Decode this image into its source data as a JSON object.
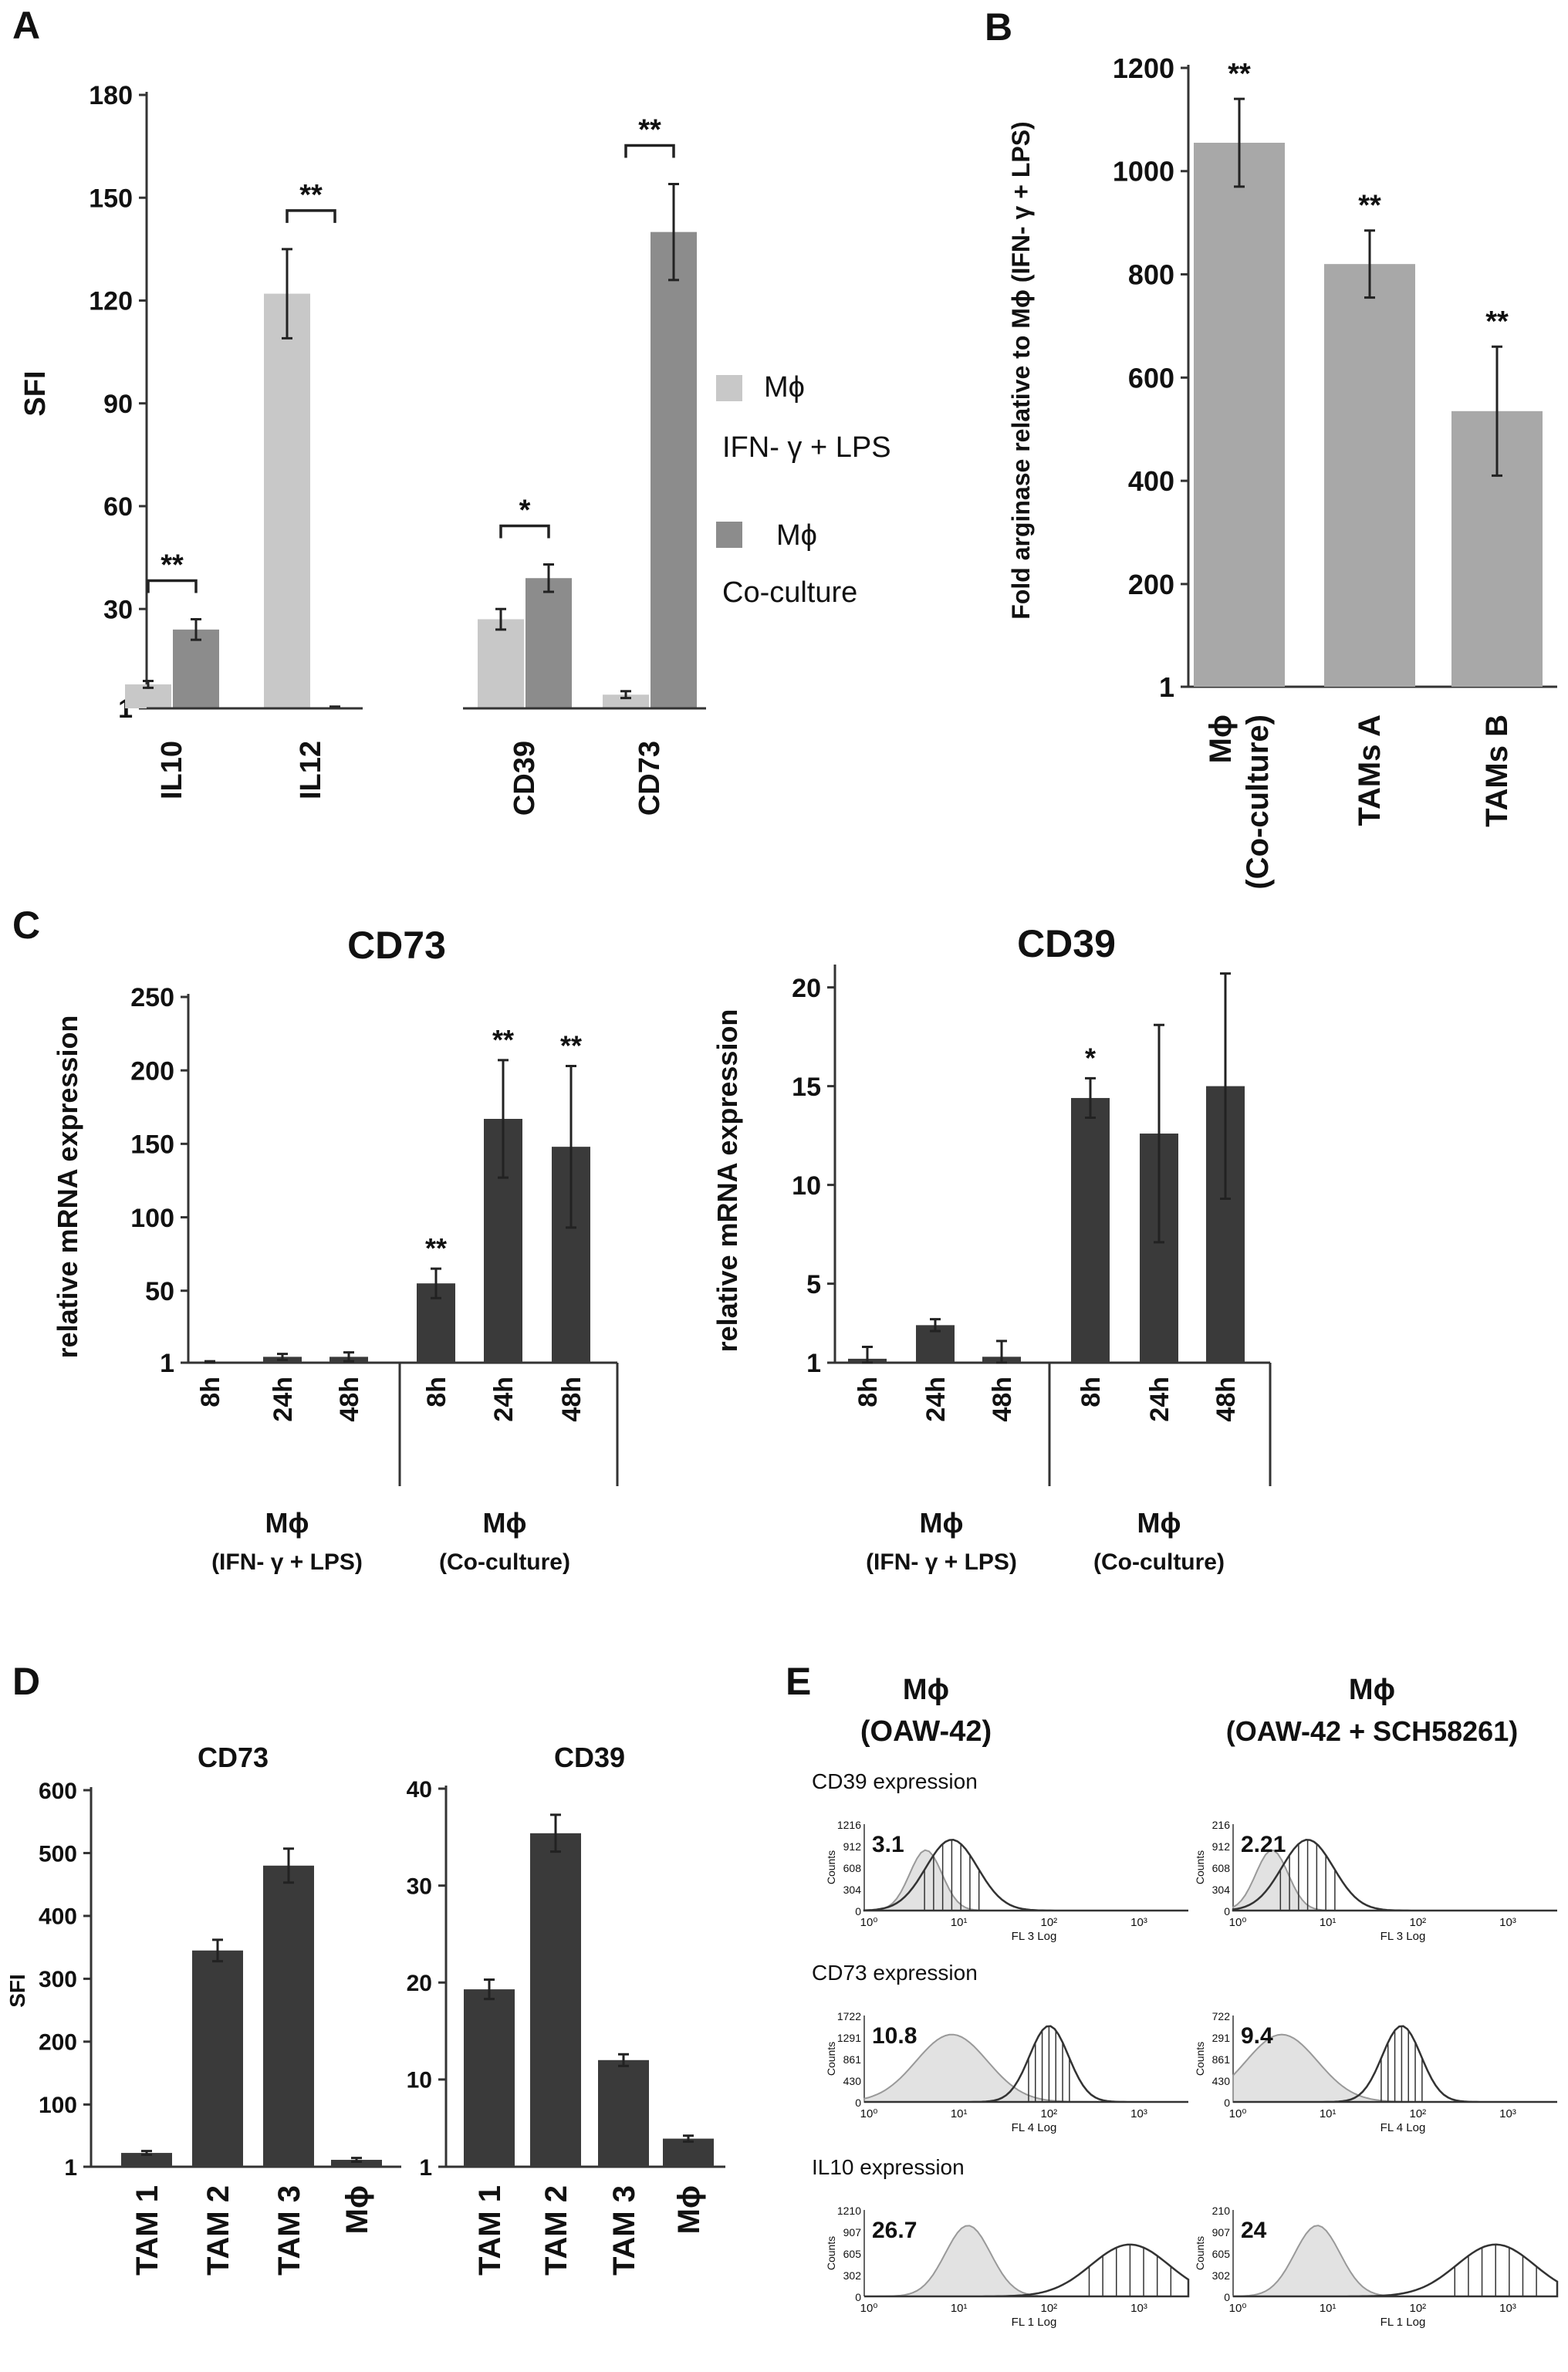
{
  "colors": {
    "light": "#c8c8c8",
    "medium": "#8c8c8c",
    "dark": "#3a3a3a",
    "armB": "#a8a8a8"
  },
  "panels": {
    "A": {
      "letter": "A",
      "ylabel": "SFI",
      "legend": [
        {
          "name": "Mϕ",
          "sub": "IFN- γ + LPS",
          "color": "light"
        },
        {
          "name": "Mϕ",
          "sub": "Co-culture",
          "color": "medium"
        }
      ]
    },
    "B": {
      "letter": "B"
    },
    "C": {
      "letter": "C",
      "group1_line1": "Mϕ",
      "group1_line2": "(IFN- γ + LPS)",
      "group2_line1": "Mϕ",
      "group2_line2": "(Co-culture)"
    },
    "D": {
      "letter": "D"
    },
    "E": {
      "letter": "E",
      "col1_line1": "Mϕ",
      "col1_line2": "(OAW-42)",
      "col2_line1": "Mϕ",
      "col2_line2": "(OAW-42 + SCH58261)",
      "rows": [
        {
          "label": "CD39 expression",
          "axis": "FL 3 Log",
          "ymax": "1216",
          "ymax2": "216",
          "ticks": [
            "912",
            "608",
            "304",
            "0"
          ],
          "ticks2": [
            "912",
            "608",
            "304",
            "0"
          ],
          "left_value": "3.1",
          "right_value": "2.21"
        },
        {
          "label": "CD73 expression",
          "axis": "FL 4 Log",
          "ymax": "1722",
          "ymax2": "722",
          "ticks": [
            "1291",
            "861",
            "430",
            "0"
          ],
          "ticks2": [
            "291",
            "861",
            "430",
            "0"
          ],
          "left_value": "10.8",
          "right_value": "9.4"
        },
        {
          "label": "IL10 expression",
          "axis": "FL 1 Log",
          "ymax": "1210",
          "ymax2": "210",
          "ticks": [
            "907",
            "605",
            "302",
            "0"
          ],
          "ticks2": [
            "907",
            "605",
            "302",
            "0"
          ],
          "left_value": "26.7",
          "right_value": "24"
        }
      ],
      "xticks": [
        "10⁰",
        "10¹",
        "10²",
        "10³"
      ],
      "counts_label": "Counts"
    }
  },
  "chart_data": [
    {
      "panel": "A",
      "type": "bar",
      "categories": [
        "IL10",
        "IL12",
        "CD39",
        "CD73"
      ],
      "ylabel": "SFI",
      "ylim": [
        1,
        180
      ],
      "yticks": [
        "1",
        "30",
        "60",
        "90",
        "120",
        "150",
        "180"
      ],
      "series": [
        {
          "name": "Mϕ IFN- γ + LPS",
          "values": [
            8,
            122,
            27,
            5
          ],
          "errors": [
            1,
            13,
            3,
            1
          ]
        },
        {
          "name": "Mϕ Co-culture",
          "values": [
            24,
            1,
            39,
            140
          ],
          "errors": [
            3,
            0.5,
            4,
            14
          ]
        }
      ],
      "significance": [
        "**",
        "**",
        "*",
        "**"
      ]
    },
    {
      "panel": "B",
      "type": "bar",
      "categories": [
        [
          "Mϕ",
          "(Co-culture)"
        ],
        [
          "TAMs A"
        ],
        [
          "TAMs B"
        ]
      ],
      "ylabel": "Fold arginase relative to Mϕ (IFN- γ + LPS)",
      "ylim": [
        1,
        1200
      ],
      "yticks": [
        "1",
        "200",
        "400",
        "600",
        "800",
        "1000",
        "1200"
      ],
      "values": [
        1055,
        820,
        535
      ],
      "errors": [
        85,
        65,
        125
      ],
      "significance": [
        "**",
        "**",
        "**"
      ]
    },
    {
      "panel": "C",
      "type": "bar",
      "title": "CD73",
      "categories": [
        "8h",
        "24h",
        "48h",
        "8h",
        "24h",
        "48h"
      ],
      "ylabel": "relative mRNA expression",
      "ylim": [
        1,
        250
      ],
      "yticks": [
        "1",
        "50",
        "100",
        "150",
        "200",
        "250"
      ],
      "values": [
        1,
        5,
        5,
        55,
        167,
        148
      ],
      "errors": [
        1,
        2,
        3,
        10,
        40,
        55
      ],
      "significance": [
        "",
        "",
        "",
        "**",
        "**",
        "**"
      ]
    },
    {
      "panel": "C",
      "type": "bar",
      "title": "CD39",
      "categories": [
        "8h",
        "24h",
        "48h",
        "8h",
        "24h",
        "48h"
      ],
      "ylabel": "relative mRNA expression",
      "ylim": [
        1,
        21
      ],
      "yticks": [
        "1",
        "5",
        "10",
        "15",
        "20"
      ],
      "values": [
        1.2,
        2.9,
        1.3,
        14.4,
        12.6,
        15
      ],
      "errors": [
        0.6,
        0.3,
        0.8,
        1.0,
        5.5,
        5.7
      ],
      "significance": [
        "",
        "",
        "",
        "*",
        "",
        ""
      ]
    },
    {
      "panel": "D",
      "type": "bar",
      "title": "CD73",
      "categories": [
        "TAM 1",
        "TAM 2",
        "TAM 3",
        "Mϕ"
      ],
      "ylabel": "SFI",
      "ylim": [
        1,
        600
      ],
      "yticks": [
        "1",
        "100",
        "200",
        "300",
        "400",
        "500",
        "600"
      ],
      "values": [
        23,
        345,
        480,
        12
      ],
      "errors": [
        3,
        17,
        27,
        3
      ]
    },
    {
      "panel": "D",
      "type": "bar",
      "title": "CD39",
      "categories": [
        "TAM 1",
        "TAM 2",
        "TAM 3",
        "Mϕ"
      ],
      "ylabel": "",
      "ylim": [
        1,
        40
      ],
      "yticks": [
        "1",
        "10",
        "20",
        "30",
        "40"
      ],
      "values": [
        19.3,
        35.4,
        12,
        3.9
      ],
      "errors": [
        1,
        1.9,
        0.6,
        0.3
      ]
    }
  ]
}
